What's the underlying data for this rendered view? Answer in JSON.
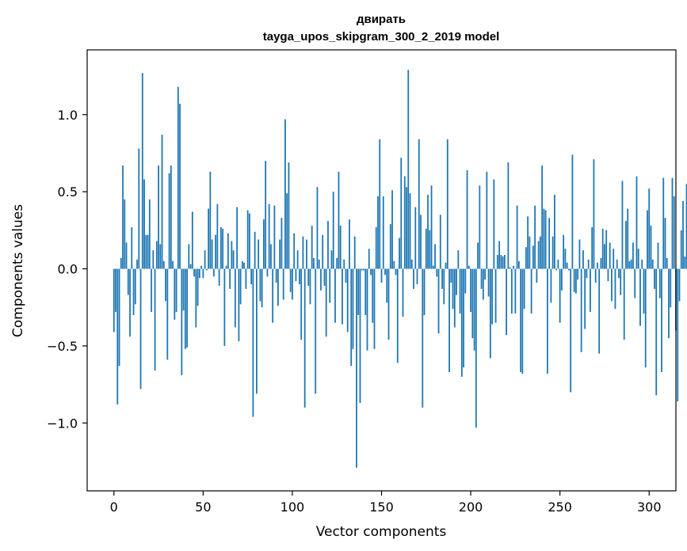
{
  "chart_data": {
    "type": "bar",
    "title": "двирать",
    "subtitle": "tayga_upos_skipgram_300_2_2019 model",
    "xlabel": "Vector components",
    "ylabel": "Components values",
    "xlim": [
      -15,
      315
    ],
    "ylim": [
      -1.44,
      1.42
    ],
    "xticks": [
      0,
      50,
      100,
      150,
      200,
      250,
      300
    ],
    "yticks": [
      -1.0,
      -0.5,
      0.0,
      0.5,
      1.0
    ],
    "yticklabels": [
      "−1.0",
      "−0.5",
      "0.0",
      "0.5",
      "1.0"
    ],
    "bar_color": "#1f77b4",
    "grid": false,
    "values": [
      -0.41,
      -0.28,
      -0.88,
      -0.63,
      0.07,
      0.67,
      0.45,
      0.17,
      -0.17,
      -0.44,
      0.27,
      -0.3,
      -0.23,
      0.06,
      0.78,
      -0.78,
      1.27,
      0.58,
      0.22,
      0.22,
      0.45,
      -0.28,
      0.12,
      -0.66,
      0.18,
      0.67,
      0.16,
      0.87,
      0.05,
      -0.21,
      -0.59,
      0.62,
      0.67,
      0.05,
      -0.33,
      -0.28,
      1.18,
      1.07,
      -0.69,
      -0.27,
      -0.52,
      -0.51,
      0.16,
      0.03,
      0.37,
      -0.05,
      -0.38,
      -0.24,
      -0.06,
      0.02,
      -0.06,
      0.12,
      -0.01,
      0.39,
      0.63,
      0.19,
      -0.05,
      0.22,
      0.42,
      -0.11,
      0.27,
      0.26,
      -0.5,
      0.02,
      0.23,
      -0.13,
      0.18,
      0.12,
      -0.38,
      0.4,
      -0.47,
      -0.23,
      0.05,
      0.04,
      -0.13,
      0.38,
      0.36,
      -0.1,
      -0.96,
      0.24,
      -0.81,
      0.19,
      -0.21,
      -0.25,
      0.32,
      0.7,
      -0.05,
      0.42,
      0.16,
      -0.35,
      0.41,
      -0.09,
      -0.24,
      0.19,
      0.33,
      -0.2,
      0.97,
      0.49,
      0.69,
      -0.15,
      -0.2,
      0.23,
      -0.08,
      0.12,
      -0.1,
      -0.46,
      0.21,
      -0.9,
      0.19,
      -0.11,
      -0.23,
      0.28,
      0.07,
      -0.81,
      0.53,
      0.06,
      -0.14,
      0.22,
      -0.11,
      -0.44,
      0.31,
      -0.22,
      0.12,
      0.5,
      -0.35,
      0.07,
      0.63,
      0.28,
      -0.36,
      0.06,
      -0.09,
      -0.41,
      0.32,
      -0.63,
      -0.52,
      0.21,
      -1.29,
      -0.3,
      -0.87,
      -0.01,
      -0.01,
      -0.3,
      -0.53,
      0.13,
      -0.04,
      -0.35,
      -0.52,
      0.27,
      0.47,
      0.84,
      -0.09,
      0.47,
      -0.04,
      -0.22,
      -0.46,
      0.29,
      0.51,
      0.05,
      -0.04,
      -0.61,
      0.2,
      0.72,
      -0.31,
      0.6,
      0.53,
      1.29,
      0.49,
      0.06,
      -0.13,
      0.4,
      -0.1,
      0.84,
      0.35,
      -0.9,
      -0.3,
      0.26,
      0.48,
      0.25,
      0.54,
      0.02,
      0.16,
      -0.05,
      -0.42,
      0.35,
      -0.13,
      -0.23,
      0.04,
      0.84,
      -0.67,
      -0.09,
      -0.26,
      -0.38,
      -0.17,
      0.12,
      -0.29,
      -0.7,
      -0.64,
      -0.16,
      0.64,
      0.02,
      -0.28,
      -0.45,
      -0.53,
      -1.03,
      0.17,
      0.54,
      -0.13,
      -0.2,
      -0.07,
      0.63,
      -0.18,
      -0.58,
      -0.36,
      0.58,
      -0.35,
      0.09,
      0.18,
      0.09,
      0.08,
      0.09,
      -0.43,
      0.69,
      0.01,
      -0.29,
      0.02,
      -0.29,
      0.41,
      0.05,
      -0.67,
      -0.68,
      -0.26,
      0.14,
      0.34,
      0.21,
      -0.29,
      0.15,
      0.41,
      -0.09,
      0.18,
      0.21,
      0.67,
      0.39,
      0.38,
      -0.68,
      0.33,
      -0.22,
      0.21,
      0.48,
      -0.01,
      0.06,
      -0.35,
      -0.14,
      0.22,
      0.13,
      0.04,
      -0.01,
      -0.8,
      0.74,
      -0.15,
      -0.16,
      -0.07,
      0.19,
      -0.54,
      0.12,
      -0.39,
      -0.06,
      0.06,
      -0.28,
      0.27,
      0.71,
      -0.09,
      0.04,
      -0.55,
      0.07,
      0.26,
      0.16,
      0.25,
      -0.08,
      0.17,
      -0.21,
      0.13,
      -0.26,
      0.06,
      -0.06,
      -0.17,
      0.57,
      -0.46,
      0.31,
      0.39,
      0.05,
      0.06,
      0.17,
      -0.19,
      0.6,
      0.13,
      -0.37,
      0.06,
      -0.29,
      -0.64,
      0.38,
      0.52,
      0.28,
      0.06,
      -0.13,
      -0.82,
      0.17,
      -0.19,
      -0.67,
      0.59,
      0.33,
      0.07,
      -0.45,
      -0.25,
      0.59,
      0.47,
      -0.4,
      -0.86,
      -0.21,
      0.25,
      0.44,
      0.08,
      0.55
    ]
  }
}
